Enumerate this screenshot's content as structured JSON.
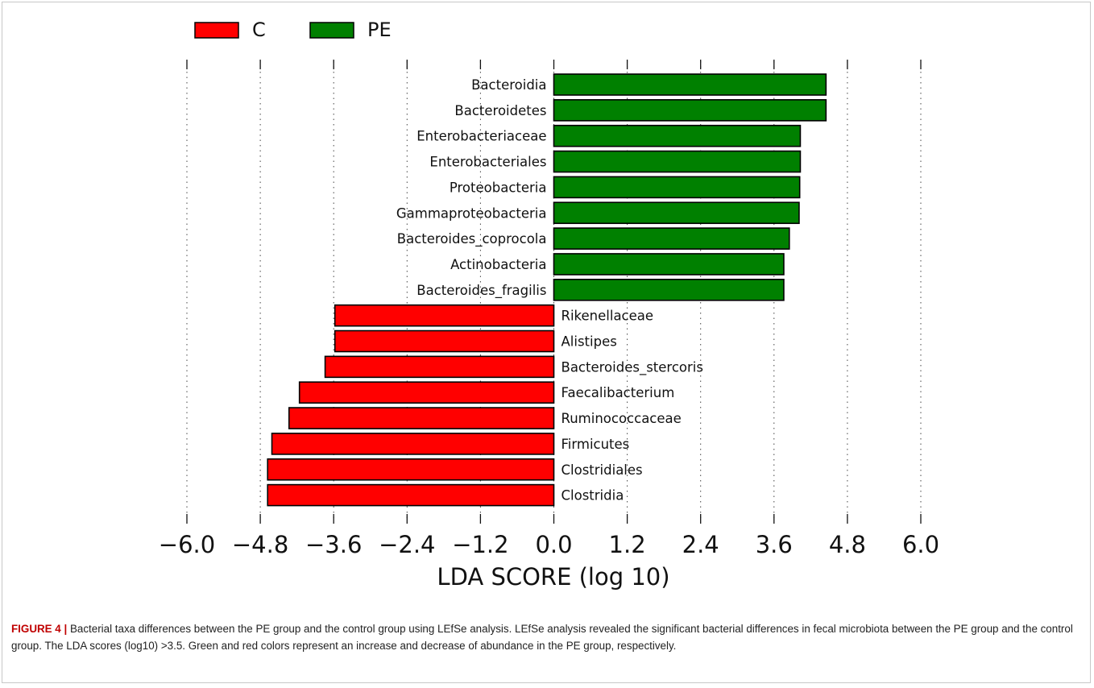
{
  "chart_data": {
    "type": "bar",
    "orientation": "horizontal",
    "xlabel": "LDA SCORE (log 10)",
    "xlim": [
      -6.0,
      6.0
    ],
    "xticks": [
      -6.0,
      -4.8,
      -3.6,
      -2.4,
      -1.2,
      0.0,
      1.2,
      2.4,
      3.6,
      4.8,
      6.0
    ],
    "xtick_labels": [
      "−6.0",
      "−4.8",
      "−3.6",
      "−2.4",
      "−1.2",
      "0.0",
      "1.2",
      "2.4",
      "3.6",
      "4.8",
      "6.0"
    ],
    "grid": "vertical dotted",
    "legend": {
      "placement": "top-left",
      "entries": [
        {
          "label": "C",
          "color": "#ff0000"
        },
        {
          "label": "PE",
          "color": "#008000"
        }
      ]
    },
    "series": [
      {
        "name": "C",
        "color": "#ff0000"
      },
      {
        "name": "PE",
        "color": "#008000"
      }
    ],
    "categories": [
      "Bacteroidia",
      "Bacteroidetes",
      "Enterobacteriaceae",
      "Enterobacteriales",
      "Proteobacteria",
      "Gammaproteobacteria",
      "Bacteroides_coprocola",
      "Actinobacteria",
      "Bacteroides_fragilis",
      "Rikenellaceae",
      "Alistipes",
      "Bacteroides_stercoris",
      "Faecalibacterium",
      "Ruminococcaceae",
      "Firmicutes",
      "Clostridiales",
      "Clostridia"
    ],
    "values": [
      4.45,
      4.45,
      4.03,
      4.03,
      4.02,
      4.01,
      3.85,
      3.76,
      3.76,
      -3.58,
      -3.58,
      -3.74,
      -4.16,
      -4.33,
      -4.61,
      -4.68,
      -4.68
    ],
    "groups": [
      "PE",
      "PE",
      "PE",
      "PE",
      "PE",
      "PE",
      "PE",
      "PE",
      "PE",
      "C",
      "C",
      "C",
      "C",
      "C",
      "C",
      "C",
      "C"
    ]
  },
  "caption": {
    "label": "FIGURE 4 |",
    "text": " Bacterial taxa differences between the PE group and the control group using LEfSe analysis. LEfSe analysis revealed the significant bacterial differences in fecal microbiota between the PE group and the control group. The LDA scores (log10) >3.5. Green and red colors represent an increase and decrease of abundance in the PE group, respectively."
  }
}
